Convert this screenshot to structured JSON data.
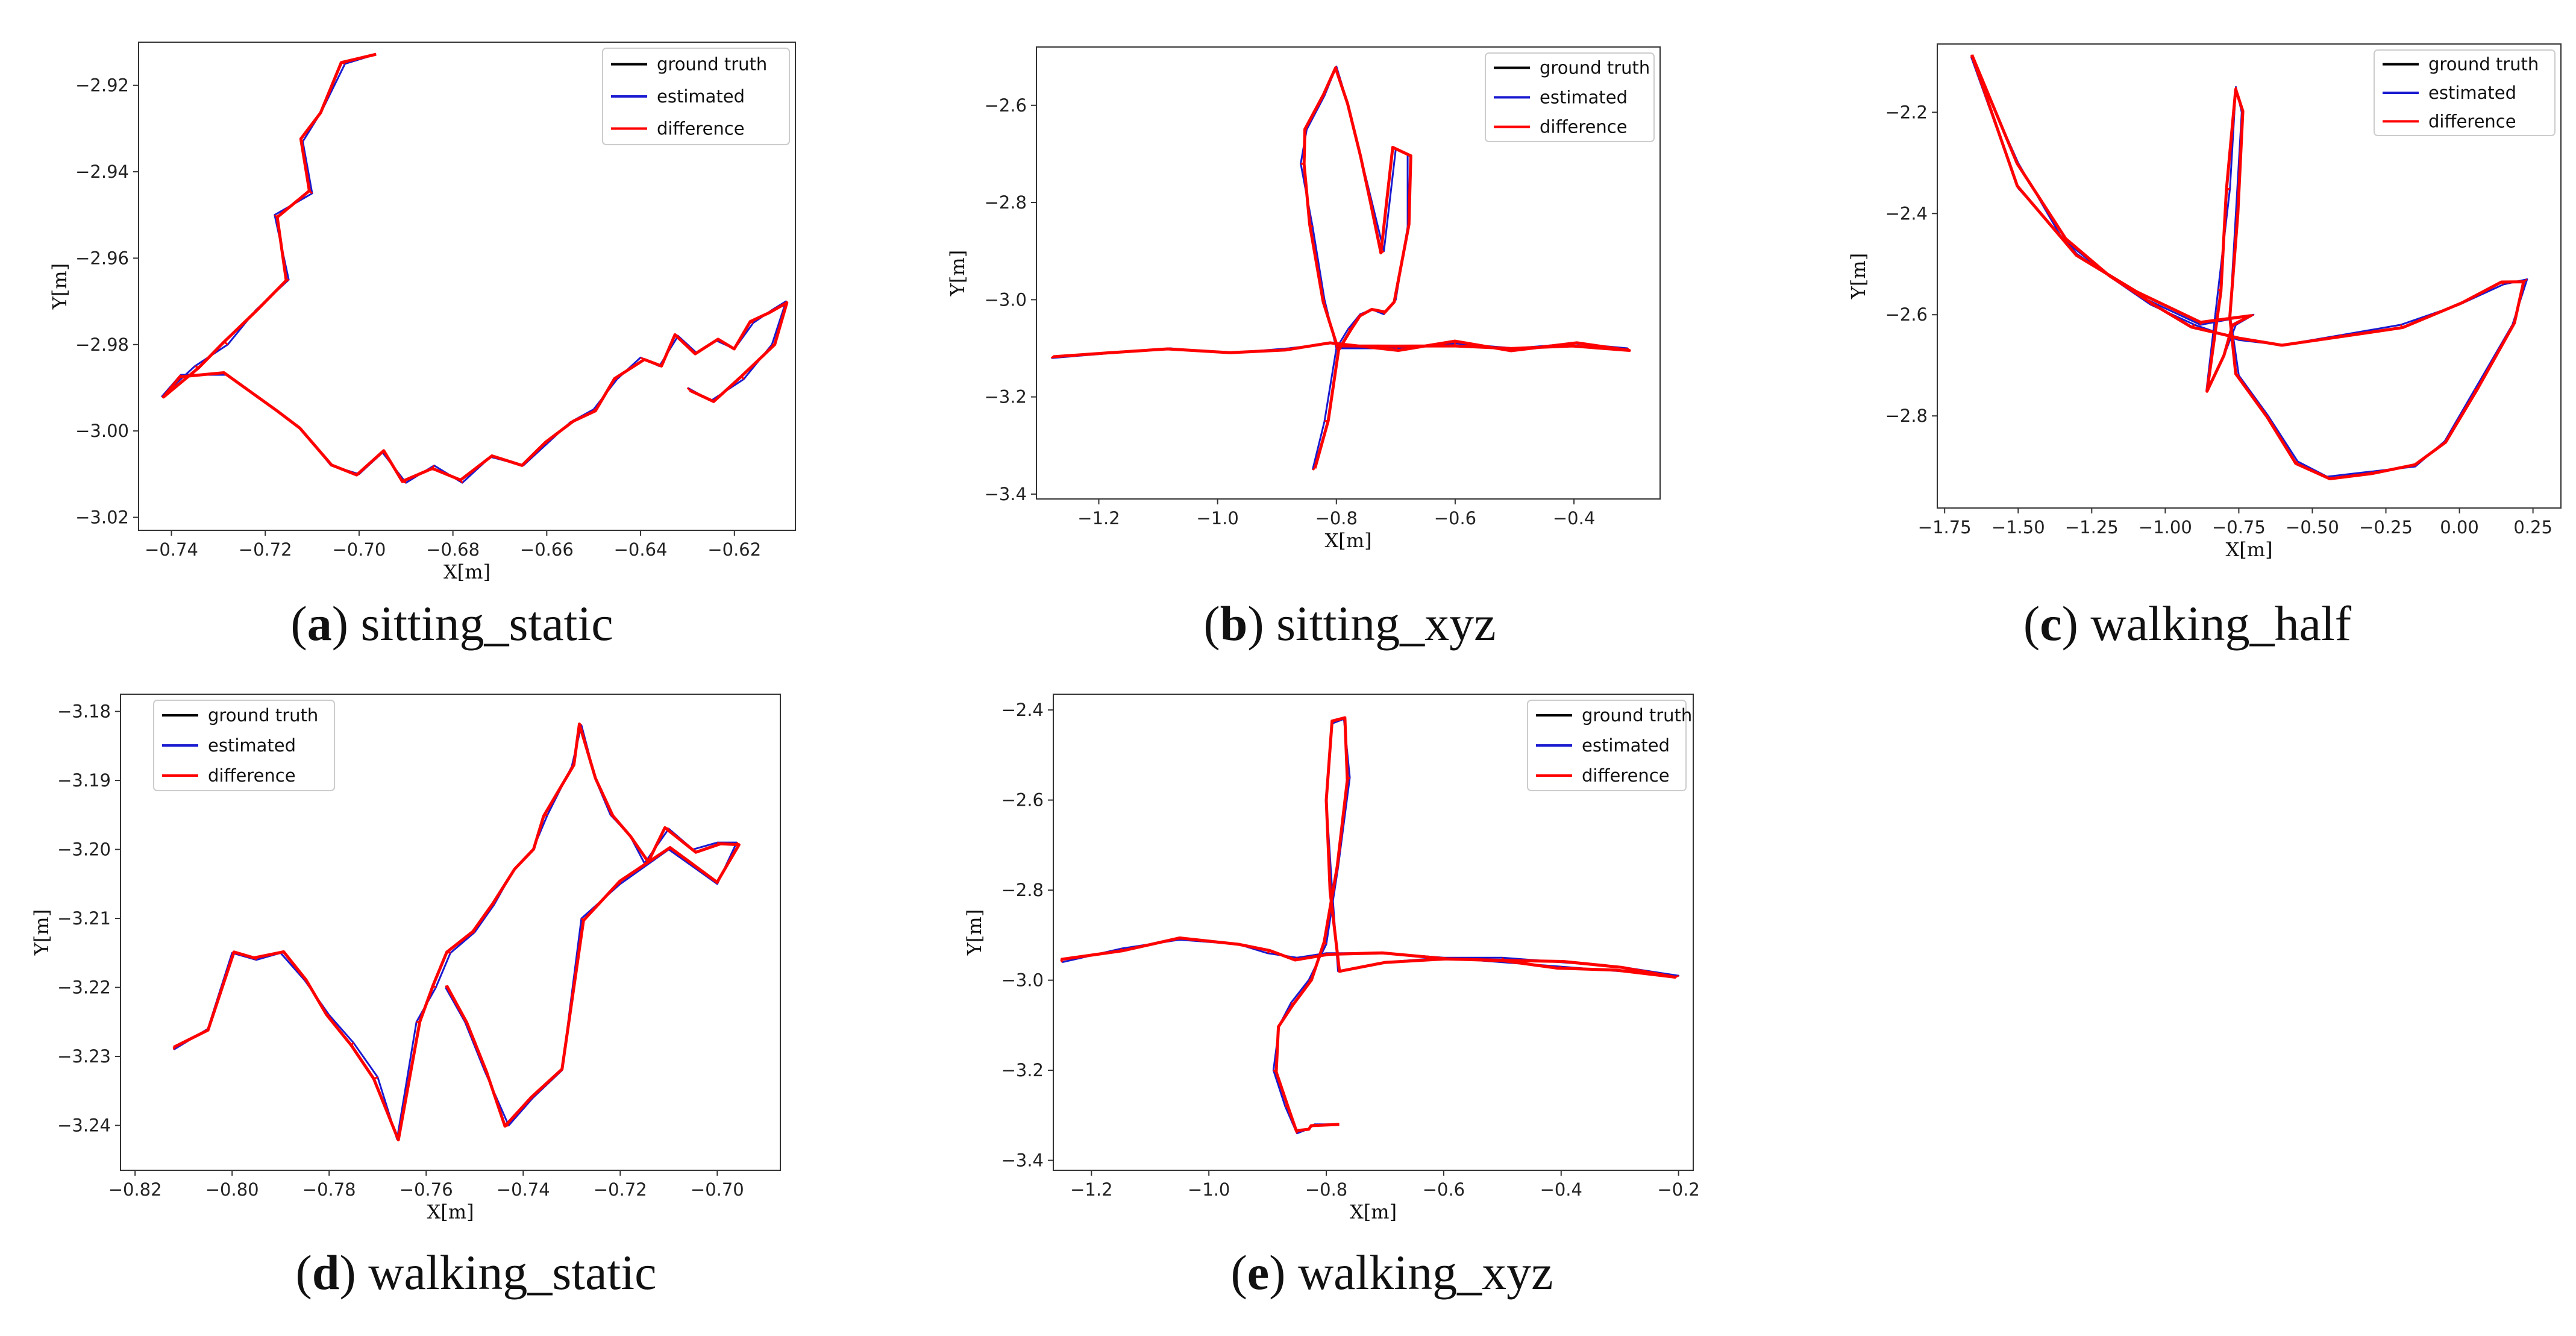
{
  "colors": {
    "ground_truth": "#000000",
    "estimated": "#1a1ad0",
    "difference": "#ff0000"
  },
  "chart_data": [
    {
      "id": "a",
      "type": "line",
      "caption_letter": "a",
      "caption_text": "sitting_static",
      "xlabel": "X[m]",
      "ylabel": "Y[m]",
      "xlim": [
        -0.747,
        -0.607
      ],
      "ylim": [
        -3.023,
        -2.91
      ],
      "xticks": [
        -0.74,
        -0.72,
        -0.7,
        -0.68,
        -0.66,
        -0.64,
        -0.62
      ],
      "xtick_labels": [
        "−0.74",
        "−0.72",
        "−0.70",
        "−0.68",
        "−0.66",
        "−0.64",
        "−0.62"
      ],
      "yticks": [
        -2.92,
        -2.94,
        -2.96,
        -2.98,
        -3.0,
        -3.02
      ],
      "ytick_labels": [
        "−2.92",
        "−2.94",
        "−2.96",
        "−2.98",
        "−3.00",
        "−3.02"
      ],
      "legend": [
        "ground truth",
        "estimated",
        "difference"
      ],
      "series": [
        {
          "name": "estimated",
          "x": [
            -0.697,
            -0.703,
            -0.708,
            -0.712,
            -0.71,
            -0.718,
            -0.715,
            -0.722,
            -0.728,
            -0.735,
            -0.742,
            -0.738,
            -0.728,
            -0.718,
            -0.712,
            -0.706,
            -0.7,
            -0.695,
            -0.69,
            -0.684,
            -0.678,
            -0.672,
            -0.665,
            -0.66,
            -0.655,
            -0.65,
            -0.645,
            -0.64,
            -0.636,
            -0.632,
            -0.628,
            -0.624,
            -0.62,
            -0.616,
            -0.612,
            -0.609,
            -0.612,
            -0.618,
            -0.625,
            -0.63
          ],
          "y": [
            -2.913,
            -2.915,
            -2.926,
            -2.933,
            -2.945,
            -2.95,
            -2.965,
            -2.972,
            -2.98,
            -2.985,
            -2.992,
            -2.987,
            -2.987,
            -2.995,
            -3.0,
            -3.008,
            -3.01,
            -3.005,
            -3.012,
            -3.008,
            -3.012,
            -3.006,
            -3.008,
            -3.003,
            -2.998,
            -2.995,
            -2.988,
            -2.983,
            -2.985,
            -2.978,
            -2.982,
            -2.979,
            -2.981,
            -2.975,
            -2.972,
            -2.97,
            -2.98,
            -2.988,
            -2.993,
            -2.99
          ]
        }
      ]
    },
    {
      "id": "b",
      "type": "line",
      "caption_letter": "b",
      "caption_text": "sitting_xyz",
      "xlabel": "X[m]",
      "ylabel": "Y[m]",
      "xlim": [
        -1.305,
        -0.255
      ],
      "ylim": [
        -3.41,
        -2.48
      ],
      "xticks": [
        -1.2,
        -1.0,
        -0.8,
        -0.6,
        -0.4
      ],
      "xtick_labels": [
        "−1.2",
        "−1.0",
        "−0.8",
        "−0.6",
        "−0.4"
      ],
      "yticks": [
        -2.6,
        -2.8,
        -3.0,
        -3.2,
        -3.4
      ],
      "ytick_labels": [
        "−2.6",
        "−2.8",
        "−3.0",
        "−3.2",
        "−3.4"
      ],
      "legend": [
        "ground truth",
        "estimated",
        "difference"
      ],
      "series": [
        {
          "name": "estimated",
          "x": [
            -1.28,
            -1.18,
            -1.08,
            -0.98,
            -0.88,
            -0.81,
            -0.7,
            -0.6,
            -0.5,
            -0.4,
            -0.31,
            -0.4,
            -0.5,
            -0.6,
            -0.7,
            -0.8,
            -0.82,
            -0.84,
            -0.86,
            -0.85,
            -0.82,
            -0.8,
            -0.78,
            -0.76,
            -0.74,
            -0.72,
            -0.7,
            -0.68,
            -0.68,
            -0.7,
            -0.72,
            -0.74,
            -0.76,
            -0.78,
            -0.8,
            -0.82,
            -0.84
          ],
          "y": [
            -3.12,
            -3.11,
            -3.1,
            -3.11,
            -3.1,
            -3.09,
            -3.1,
            -3.09,
            -3.1,
            -3.09,
            -3.1,
            -3.09,
            -3.1,
            -3.09,
            -3.1,
            -3.1,
            -3.0,
            -2.85,
            -2.72,
            -2.65,
            -2.58,
            -2.52,
            -2.6,
            -2.7,
            -2.8,
            -2.9,
            -2.69,
            -2.7,
            -2.85,
            -3.0,
            -3.03,
            -3.02,
            -3.03,
            -3.06,
            -3.1,
            -3.25,
            -3.35
          ]
        }
      ]
    },
    {
      "id": "c",
      "type": "line",
      "caption_letter": "c",
      "caption_text": "walking_half",
      "xlabel": "X[m]",
      "ylabel": "Y[m]",
      "xlim": [
        -1.775,
        0.345
      ],
      "ylim": [
        -2.982,
        -2.065
      ],
      "xticks": [
        -1.75,
        -1.5,
        -1.25,
        -1.0,
        -0.75,
        -0.5,
        -0.25,
        0.0,
        0.25
      ],
      "xtick_labels": [
        "−1.75",
        "−1.50",
        "−1.25",
        "−1.00",
        "−0.75",
        "−0.50",
        "−0.25",
        "0.00",
        "0.25"
      ],
      "yticks": [
        -2.2,
        -2.4,
        -2.6,
        -2.8
      ],
      "ytick_labels": [
        "−2.2",
        "−2.4",
        "−2.6",
        "−2.8"
      ],
      "legend": [
        "ground truth",
        "estimated",
        "difference"
      ],
      "series": [
        {
          "name": "estimated",
          "x": [
            -1.66,
            -1.5,
            -1.35,
            -1.2,
            -1.05,
            -0.9,
            -0.75,
            -0.6,
            -0.4,
            -0.2,
            0.0,
            0.15,
            0.23,
            0.18,
            0.05,
            -0.05,
            -0.15,
            -0.3,
            -0.45,
            -0.55,
            -0.65,
            -0.75,
            -0.78,
            -0.76,
            -0.74,
            -0.76,
            -0.78,
            -0.82,
            -0.86,
            -0.8,
            -0.76,
            -0.7,
            -0.88,
            -1.1,
            -1.3,
            -1.5,
            -1.66
          ],
          "y": [
            -2.09,
            -2.3,
            -2.45,
            -2.52,
            -2.58,
            -2.62,
            -2.65,
            -2.66,
            -2.64,
            -2.62,
            -2.58,
            -2.54,
            -2.53,
            -2.62,
            -2.75,
            -2.85,
            -2.9,
            -2.91,
            -2.92,
            -2.89,
            -2.8,
            -2.72,
            -2.6,
            -2.4,
            -2.2,
            -2.15,
            -2.35,
            -2.55,
            -2.75,
            -2.68,
            -2.62,
            -2.6,
            -2.62,
            -2.56,
            -2.48,
            -2.35,
            -2.09
          ]
        }
      ]
    },
    {
      "id": "d",
      "type": "line",
      "caption_letter": "d",
      "caption_text": "walking_static",
      "xlabel": "X[m]",
      "ylabel": "Y[m]",
      "xlim": [
        -0.823,
        -0.687
      ],
      "ylim": [
        -3.2465,
        -3.1775
      ],
      "xticks": [
        -0.82,
        -0.8,
        -0.78,
        -0.76,
        -0.74,
        -0.72,
        -0.7
      ],
      "xtick_labels": [
        "−0.82",
        "−0.80",
        "−0.78",
        "−0.76",
        "−0.74",
        "−0.72",
        "−0.70"
      ],
      "yticks": [
        -3.18,
        -3.19,
        -3.2,
        -3.21,
        -3.22,
        -3.23,
        -3.24
      ],
      "ytick_labels": [
        "−3.18",
        "−3.19",
        "−3.20",
        "−3.21",
        "−3.22",
        "−3.23",
        "−3.24"
      ],
      "legend": [
        "ground truth",
        "estimated",
        "difference"
      ],
      "series": [
        {
          "name": "estimated",
          "x": [
            -0.812,
            -0.805,
            -0.8,
            -0.795,
            -0.79,
            -0.785,
            -0.78,
            -0.775,
            -0.77,
            -0.766,
            -0.762,
            -0.758,
            -0.755,
            -0.75,
            -0.746,
            -0.742,
            -0.738,
            -0.735,
            -0.73,
            -0.728,
            -0.725,
            -0.722,
            -0.718,
            -0.715,
            -0.71,
            -0.705,
            -0.7,
            -0.696,
            -0.7,
            -0.71,
            -0.72,
            -0.728,
            -0.732,
            -0.738,
            -0.743,
            -0.748,
            -0.752,
            -0.756
          ],
          "y": [
            -3.229,
            -3.226,
            -3.215,
            -3.216,
            -3.215,
            -3.219,
            -3.224,
            -3.228,
            -3.233,
            -3.242,
            -3.225,
            -3.22,
            -3.215,
            -3.212,
            -3.208,
            -3.203,
            -3.2,
            -3.195,
            -3.188,
            -3.182,
            -3.19,
            -3.195,
            -3.198,
            -3.202,
            -3.197,
            -3.2,
            -3.199,
            -3.199,
            -3.205,
            -3.2,
            -3.205,
            -3.21,
            -3.232,
            -3.236,
            -3.24,
            -3.232,
            -3.225,
            -3.22
          ]
        }
      ]
    },
    {
      "id": "e",
      "type": "line",
      "caption_letter": "e",
      "caption_text": "walking_xyz",
      "xlabel": "X[m]",
      "ylabel": "Y[m]",
      "xlim": [
        -1.265,
        -0.175
      ],
      "ylim": [
        -3.422,
        -2.365
      ],
      "xticks": [
        -1.2,
        -1.0,
        -0.8,
        -0.6,
        -0.4,
        -0.2
      ],
      "xtick_labels": [
        "−1.2",
        "−1.0",
        "−0.8",
        "−0.6",
        "−0.4",
        "−0.2"
      ],
      "yticks": [
        -2.4,
        -2.6,
        -2.8,
        -3.0,
        -3.2,
        -3.4
      ],
      "ytick_labels": [
        "−2.4",
        "−2.6",
        "−2.8",
        "−3.0",
        "−3.2",
        "−3.4"
      ],
      "legend": [
        "ground truth",
        "estimated",
        "difference"
      ],
      "series": [
        {
          "name": "estimated",
          "x": [
            -1.25,
            -1.15,
            -1.05,
            -0.95,
            -0.9,
            -0.85,
            -0.8,
            -0.7,
            -0.6,
            -0.5,
            -0.4,
            -0.3,
            -0.2,
            -0.3,
            -0.4,
            -0.5,
            -0.6,
            -0.7,
            -0.78,
            -0.79,
            -0.8,
            -0.79,
            -0.77,
            -0.76,
            -0.78,
            -0.8,
            -0.83,
            -0.86,
            -0.88,
            -0.89,
            -0.87,
            -0.85,
            -0.83,
            -0.82,
            -0.78
          ],
          "y": [
            -2.96,
            -2.93,
            -2.91,
            -2.92,
            -2.94,
            -2.95,
            -2.94,
            -2.94,
            -2.95,
            -2.96,
            -2.97,
            -2.98,
            -2.99,
            -2.97,
            -2.96,
            -2.95,
            -2.95,
            -2.96,
            -2.98,
            -2.8,
            -2.6,
            -2.43,
            -2.42,
            -2.55,
            -2.75,
            -2.92,
            -3.0,
            -3.05,
            -3.1,
            -3.2,
            -3.28,
            -3.34,
            -3.33,
            -3.32,
            -3.32
          ]
        }
      ]
    }
  ]
}
